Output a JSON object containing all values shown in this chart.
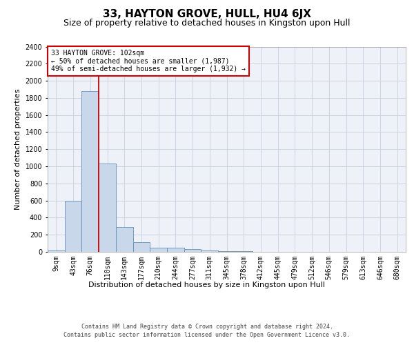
{
  "title": "33, HAYTON GROVE, HULL, HU4 6JX",
  "subtitle": "Size of property relative to detached houses in Kingston upon Hull",
  "xlabel_bottom": "Distribution of detached houses by size in Kingston upon Hull",
  "ylabel": "Number of detached properties",
  "footer_line1": "Contains HM Land Registry data © Crown copyright and database right 2024.",
  "footer_line2": "Contains public sector information licensed under the Open Government Licence v3.0.",
  "annotation_line1": "33 HAYTON GROVE: 102sqm",
  "annotation_line2": "← 50% of detached houses are smaller (1,987)",
  "annotation_line3": "49% of semi-detached houses are larger (1,932) →",
  "bar_color": "#c8d8ea",
  "bar_edge_color": "#6090b8",
  "grid_color": "#c8d0dc",
  "background_color": "#eef2f8",
  "red_line_color": "#cc0000",
  "annotation_box_edgecolor": "#cc0000",
  "x_labels": [
    "9sqm",
    "43sqm",
    "76sqm",
    "110sqm",
    "143sqm",
    "177sqm",
    "210sqm",
    "244sqm",
    "277sqm",
    "311sqm",
    "345sqm",
    "378sqm",
    "412sqm",
    "445sqm",
    "479sqm",
    "512sqm",
    "546sqm",
    "579sqm",
    "613sqm",
    "646sqm",
    "680sqm"
  ],
  "bar_values": [
    20,
    600,
    1880,
    1030,
    290,
    115,
    50,
    45,
    30,
    15,
    10,
    5,
    3,
    2,
    1,
    1,
    0,
    0,
    0,
    0,
    0
  ],
  "ylim": [
    0,
    2400
  ],
  "yticks": [
    0,
    200,
    400,
    600,
    800,
    1000,
    1200,
    1400,
    1600,
    1800,
    2000,
    2200,
    2400
  ],
  "red_line_x": 2.5,
  "title_fontsize": 11,
  "subtitle_fontsize": 9,
  "ylabel_fontsize": 8,
  "tick_fontsize": 7,
  "footer_fontsize": 6,
  "annotation_fontsize": 7
}
